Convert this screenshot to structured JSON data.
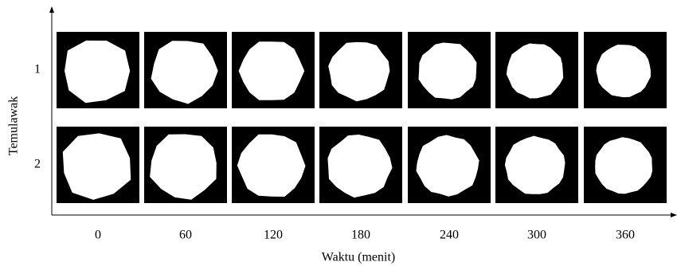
{
  "figure": {
    "y_axis_label": "Temulawak",
    "x_axis_label": "Waktu (menit)",
    "rows": [
      "1",
      "2"
    ],
    "columns": [
      "0",
      "60",
      "120",
      "180",
      "240",
      "300",
      "360"
    ]
  }
}
